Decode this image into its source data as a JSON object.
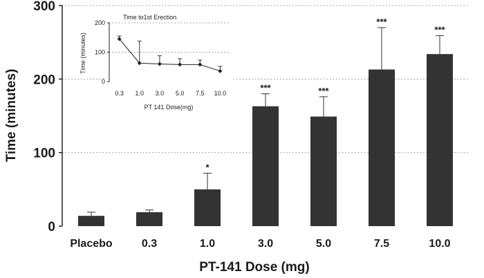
{
  "chart_data": [
    {
      "type": "bar",
      "title": "",
      "xlabel": "PT-141 Dose (mg)",
      "ylabel": "Time (minutes)",
      "ylim": [
        0,
        300
      ],
      "yticks": [
        "0",
        "100",
        "200",
        "300"
      ],
      "categories": [
        "Placebo",
        "0.3",
        "1.0",
        "3.0",
        "5.0",
        "7.5",
        "10.0"
      ],
      "values": [
        14,
        19,
        50,
        163,
        149,
        213,
        234
      ],
      "errors": [
        5,
        3,
        22,
        17,
        27,
        57,
        25
      ],
      "significance": [
        "",
        "",
        "*",
        "***",
        "***",
        "***",
        "***"
      ],
      "grid": "horizontal dotted",
      "bar_color": "#333333"
    },
    {
      "type": "line",
      "title": "Time to1st Erection",
      "xlabel": "PT 141  Dose(mg)",
      "ylabel": "Time (minutes)",
      "ylim": [
        0,
        200
      ],
      "yticks": [
        "0",
        "100",
        "200"
      ],
      "categories": [
        "0.3",
        "1.0",
        "3.0",
        "5.0",
        "7.5",
        "10.0"
      ],
      "values": [
        145,
        63,
        60,
        58,
        58,
        36
      ],
      "errors": [
        10,
        75,
        28,
        20,
        15,
        16
      ]
    }
  ]
}
